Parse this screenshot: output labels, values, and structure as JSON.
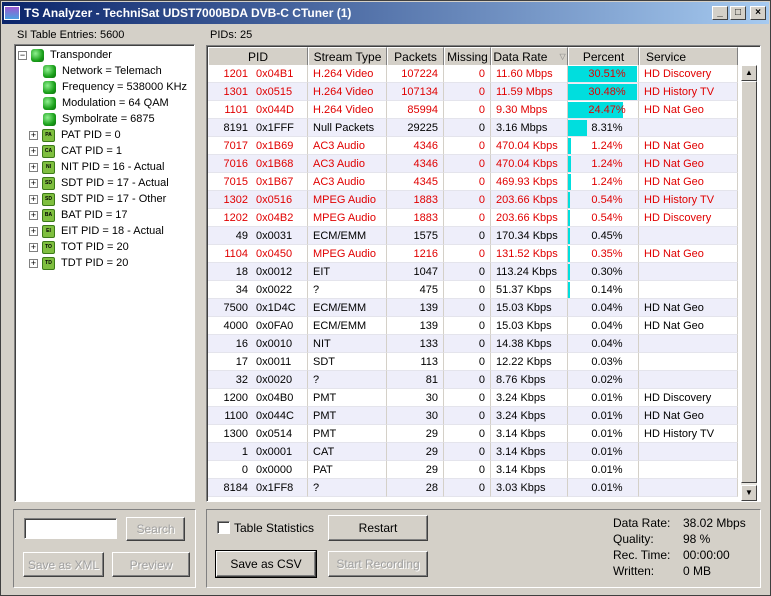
{
  "window": {
    "title": "TS Analyzer - TechniSat UDST7000BDA DVB-C CTuner (1)"
  },
  "left_panel": {
    "label": "SI Table Entries: 5600",
    "tree": {
      "root": "Transponder",
      "props": [
        "Network = Telemach",
        "Frequency = 538000 KHz",
        "Modulation = 64 QAM",
        "Symbolrate = 6875"
      ],
      "tables": [
        {
          "label": "PAT PID = 0",
          "icon": "PA"
        },
        {
          "label": "CAT PID = 1",
          "icon": "CA"
        },
        {
          "label": "NIT PID = 16 - Actual",
          "icon": "NI"
        },
        {
          "label": "SDT PID = 17 - Actual",
          "icon": "SD"
        },
        {
          "label": "SDT PID = 17 - Other",
          "icon": "SD"
        },
        {
          "label": "BAT PID = 17",
          "icon": "BA"
        },
        {
          "label": "EIT PID = 18 - Actual",
          "icon": "EI"
        },
        {
          "label": "TOT PID = 20",
          "icon": "TO"
        },
        {
          "label": "TDT PID = 20",
          "icon": "TD"
        }
      ]
    },
    "search": {
      "value": "",
      "button": "Search"
    },
    "save_xml": "Save as XML",
    "preview": "Preview"
  },
  "right_panel": {
    "label": "PIDs: 25",
    "columns": [
      "PID",
      "Stream Type",
      "Packets",
      "Missing",
      "Data Rate",
      "Percent",
      "Service"
    ],
    "sorted_column": "Data Rate",
    "colors": {
      "highlight_text": "#e00000",
      "percent_bar": "#00dede",
      "alt_row": "#eeeefa"
    },
    "rows": [
      {
        "pid": "1201",
        "hex": "0x04B1",
        "type": "H.264 Video",
        "packets": "107224",
        "missing": "0",
        "rate": "11.60 Mbps",
        "percent": "30.51%",
        "pct": 30.51,
        "service": "HD Discovery",
        "red": true
      },
      {
        "pid": "1301",
        "hex": "0x0515",
        "type": "H.264 Video",
        "packets": "107134",
        "missing": "0",
        "rate": "11.59 Mbps",
        "percent": "30.48%",
        "pct": 30.48,
        "service": "HD History TV",
        "red": true
      },
      {
        "pid": "1101",
        "hex": "0x044D",
        "type": "H.264 Video",
        "packets": "85994",
        "missing": "0",
        "rate": "9.30 Mbps",
        "percent": "24.47%",
        "pct": 24.47,
        "service": "HD Nat Geo",
        "red": true
      },
      {
        "pid": "8191",
        "hex": "0x1FFF",
        "type": "Null Packets",
        "packets": "29225",
        "missing": "0",
        "rate": "3.16 Mbps",
        "percent": "8.31%",
        "pct": 8.31,
        "service": "",
        "red": false
      },
      {
        "pid": "7017",
        "hex": "0x1B69",
        "type": "AC3 Audio",
        "packets": "4346",
        "missing": "0",
        "rate": "470.04 Kbps",
        "percent": "1.24%",
        "pct": 1.24,
        "service": "HD Nat Geo",
        "red": true
      },
      {
        "pid": "7016",
        "hex": "0x1B68",
        "type": "AC3 Audio",
        "packets": "4346",
        "missing": "0",
        "rate": "470.04 Kbps",
        "percent": "1.24%",
        "pct": 1.24,
        "service": "HD Nat Geo",
        "red": true
      },
      {
        "pid": "7015",
        "hex": "0x1B67",
        "type": "AC3 Audio",
        "packets": "4345",
        "missing": "0",
        "rate": "469.93 Kbps",
        "percent": "1.24%",
        "pct": 1.24,
        "service": "HD Nat Geo",
        "red": true
      },
      {
        "pid": "1302",
        "hex": "0x0516",
        "type": "MPEG Audio",
        "packets": "1883",
        "missing": "0",
        "rate": "203.66 Kbps",
        "percent": "0.54%",
        "pct": 0.54,
        "service": "HD History TV",
        "red": true
      },
      {
        "pid": "1202",
        "hex": "0x04B2",
        "type": "MPEG Audio",
        "packets": "1883",
        "missing": "0",
        "rate": "203.66 Kbps",
        "percent": "0.54%",
        "pct": 0.54,
        "service": "HD Discovery",
        "red": true
      },
      {
        "pid": "49",
        "hex": "0x0031",
        "type": "ECM/EMM",
        "packets": "1575",
        "missing": "0",
        "rate": "170.34 Kbps",
        "percent": "0.45%",
        "pct": 0.45,
        "service": "",
        "red": false
      },
      {
        "pid": "1104",
        "hex": "0x0450",
        "type": "MPEG Audio",
        "packets": "1216",
        "missing": "0",
        "rate": "131.52 Kbps",
        "percent": "0.35%",
        "pct": 0.35,
        "service": "HD Nat Geo",
        "red": true
      },
      {
        "pid": "18",
        "hex": "0x0012",
        "type": "EIT",
        "packets": "1047",
        "missing": "0",
        "rate": "113.24 Kbps",
        "percent": "0.30%",
        "pct": 0.3,
        "service": "",
        "red": false
      },
      {
        "pid": "34",
        "hex": "0x0022",
        "type": "?",
        "packets": "475",
        "missing": "0",
        "rate": "51.37 Kbps",
        "percent": "0.14%",
        "pct": 0.14,
        "service": "",
        "red": false
      },
      {
        "pid": "7500",
        "hex": "0x1D4C",
        "type": "ECM/EMM",
        "packets": "139",
        "missing": "0",
        "rate": "15.03 Kbps",
        "percent": "0.04%",
        "pct": 0.04,
        "service": "HD Nat Geo",
        "red": false
      },
      {
        "pid": "4000",
        "hex": "0x0FA0",
        "type": "ECM/EMM",
        "packets": "139",
        "missing": "0",
        "rate": "15.03 Kbps",
        "percent": "0.04%",
        "pct": 0.04,
        "service": "HD Nat Geo",
        "red": false
      },
      {
        "pid": "16",
        "hex": "0x0010",
        "type": "NIT",
        "packets": "133",
        "missing": "0",
        "rate": "14.38 Kbps",
        "percent": "0.04%",
        "pct": 0.04,
        "service": "",
        "red": false
      },
      {
        "pid": "17",
        "hex": "0x0011",
        "type": "SDT",
        "packets": "113",
        "missing": "0",
        "rate": "12.22 Kbps",
        "percent": "0.03%",
        "pct": 0.03,
        "service": "",
        "red": false
      },
      {
        "pid": "32",
        "hex": "0x0020",
        "type": "?",
        "packets": "81",
        "missing": "0",
        "rate": "8.76 Kbps",
        "percent": "0.02%",
        "pct": 0.02,
        "service": "",
        "red": false
      },
      {
        "pid": "1200",
        "hex": "0x04B0",
        "type": "PMT",
        "packets": "30",
        "missing": "0",
        "rate": "3.24 Kbps",
        "percent": "0.01%",
        "pct": 0.01,
        "service": "HD Discovery",
        "red": false
      },
      {
        "pid": "1100",
        "hex": "0x044C",
        "type": "PMT",
        "packets": "30",
        "missing": "0",
        "rate": "3.24 Kbps",
        "percent": "0.01%",
        "pct": 0.01,
        "service": "HD Nat Geo",
        "red": false
      },
      {
        "pid": "1300",
        "hex": "0x0514",
        "type": "PMT",
        "packets": "29",
        "missing": "0",
        "rate": "3.14 Kbps",
        "percent": "0.01%",
        "pct": 0.01,
        "service": "HD History TV",
        "red": false
      },
      {
        "pid": "1",
        "hex": "0x0001",
        "type": "CAT",
        "packets": "29",
        "missing": "0",
        "rate": "3.14 Kbps",
        "percent": "0.01%",
        "pct": 0.01,
        "service": "",
        "red": false
      },
      {
        "pid": "0",
        "hex": "0x0000",
        "type": "PAT",
        "packets": "29",
        "missing": "0",
        "rate": "3.14 Kbps",
        "percent": "0.01%",
        "pct": 0.01,
        "service": "",
        "red": false
      },
      {
        "pid": "8184",
        "hex": "0x1FF8",
        "type": "?",
        "packets": "28",
        "missing": "0",
        "rate": "3.03 Kbps",
        "percent": "0.01%",
        "pct": 0.01,
        "service": "",
        "red": false
      }
    ],
    "table_statistics": {
      "label": "Table Statistics",
      "checked": false
    },
    "restart": "Restart",
    "save_csv": "Save as CSV",
    "start_recording": "Start Recording"
  },
  "stats": [
    {
      "label": "Data Rate:",
      "value": "38.02 Mbps"
    },
    {
      "label": "Quality:",
      "value": "98 %"
    },
    {
      "label": "Rec. Time:",
      "value": "00:00:00"
    },
    {
      "label": "Written:",
      "value": "0 MB"
    }
  ]
}
